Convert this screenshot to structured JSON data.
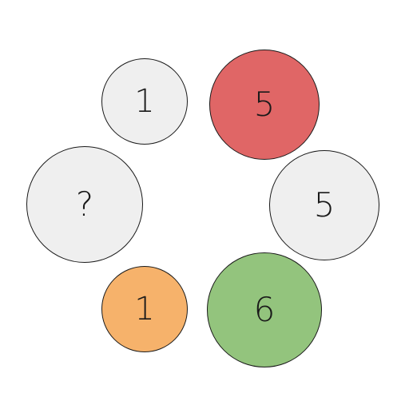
{
  "puzzle": {
    "circles": [
      {
        "id": "top-left",
        "value": "1",
        "color": "#efefef"
      },
      {
        "id": "top-right",
        "value": "5",
        "color": "#e06666"
      },
      {
        "id": "mid-left",
        "value": "?",
        "color": "#efefef"
      },
      {
        "id": "mid-right",
        "value": "5",
        "color": "#efefef"
      },
      {
        "id": "bot-left",
        "value": "1",
        "color": "#f6b26b"
      },
      {
        "id": "bot-right",
        "value": "6",
        "color": "#93c47d"
      }
    ]
  }
}
